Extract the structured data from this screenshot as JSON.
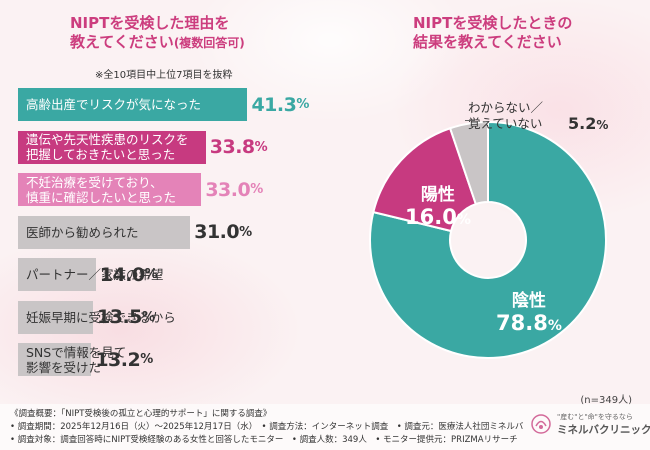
{
  "left_chart": {
    "title_line1": "NIPTを受検した理由を",
    "title_line2": "教えてください",
    "title_paren": "(複数回答可)",
    "note": "※全10項目中上位7項目を抜粋",
    "chart_data": {
      "type": "bar",
      "orientation": "horizontal",
      "unit": "%",
      "categories": [
        "高齢出産でリスクが気になった",
        "遺伝や先天性疾患のリスクを\n把握しておきたいと思った",
        "不妊治療を受けており、\n慎重に確認したいと思った",
        "医師から勧められた",
        "パートナー／家族の希望",
        "妊娠早期に受検できるから",
        "SNSで情報を見て\n影響を受けた"
      ],
      "values": [
        41.3,
        33.8,
        33.0,
        31.0,
        14.0,
        13.5,
        13.2
      ],
      "value_labels": [
        "41.3",
        "33.8",
        "33.0",
        "31.0",
        "14.0",
        "13.5",
        "13.2"
      ],
      "colors": [
        "#3aa8a3",
        "#c73a80",
        "#e483b8",
        "#c9c5c6",
        "#c9c5c6",
        "#c9c5c6",
        "#c9c5c6"
      ],
      "value_colors": [
        "#3aa8a3",
        "#c73a80",
        "#e483b8",
        "#333333",
        "#333333",
        "#333333",
        "#333333"
      ],
      "label_colors": [
        "#ffffff",
        "#ffffff",
        "#ffffff",
        "#333333",
        "#333333",
        "#333333",
        "#333333"
      ],
      "xlim": [
        0,
        45
      ]
    }
  },
  "right_chart": {
    "title_line1": "NIPTを受検したときの",
    "title_line2": "結果を教えてください",
    "chart_data": {
      "type": "pie",
      "donut": true,
      "categories": [
        "陰性",
        "陽性",
        "わからない／覚えていない"
      ],
      "values": [
        78.8,
        16.0,
        5.2
      ],
      "value_labels": [
        "78.8",
        "16.0",
        "5.2"
      ],
      "colors": [
        "#3aa8a3",
        "#c73a80",
        "#c9c5c6"
      ]
    },
    "negative_name": "陰性",
    "negative_value": "78.8",
    "positive_name": "陽性",
    "positive_value": "16.0",
    "unknown_line1": "わからない／",
    "unknown_line2": "覚えていない",
    "unknown_value": "5.2",
    "percent_sign": "%",
    "n_label": "(n=349人)"
  },
  "footer": {
    "line1": "《調査概要：「NIPT受検後の孤立と心理的サポート」に関する調査》",
    "line2": "• 調査期間：2025年12月16日（火）～2025年12月17日（水）　• 調査方法：インターネット調査　• 調査元：医療法人社団ミネルバ",
    "line3": "• 調査対象：調査回答時にNIPT受検経験のある女性と回答したモニター　• 調査人数：349人　• モニター提供元：PRIZMAリサーチ"
  },
  "logo": {
    "tagline": "\"産む\"と\"命\"を守るなら",
    "name": "ミネルバクリニック",
    "color": "#d36a9a"
  }
}
